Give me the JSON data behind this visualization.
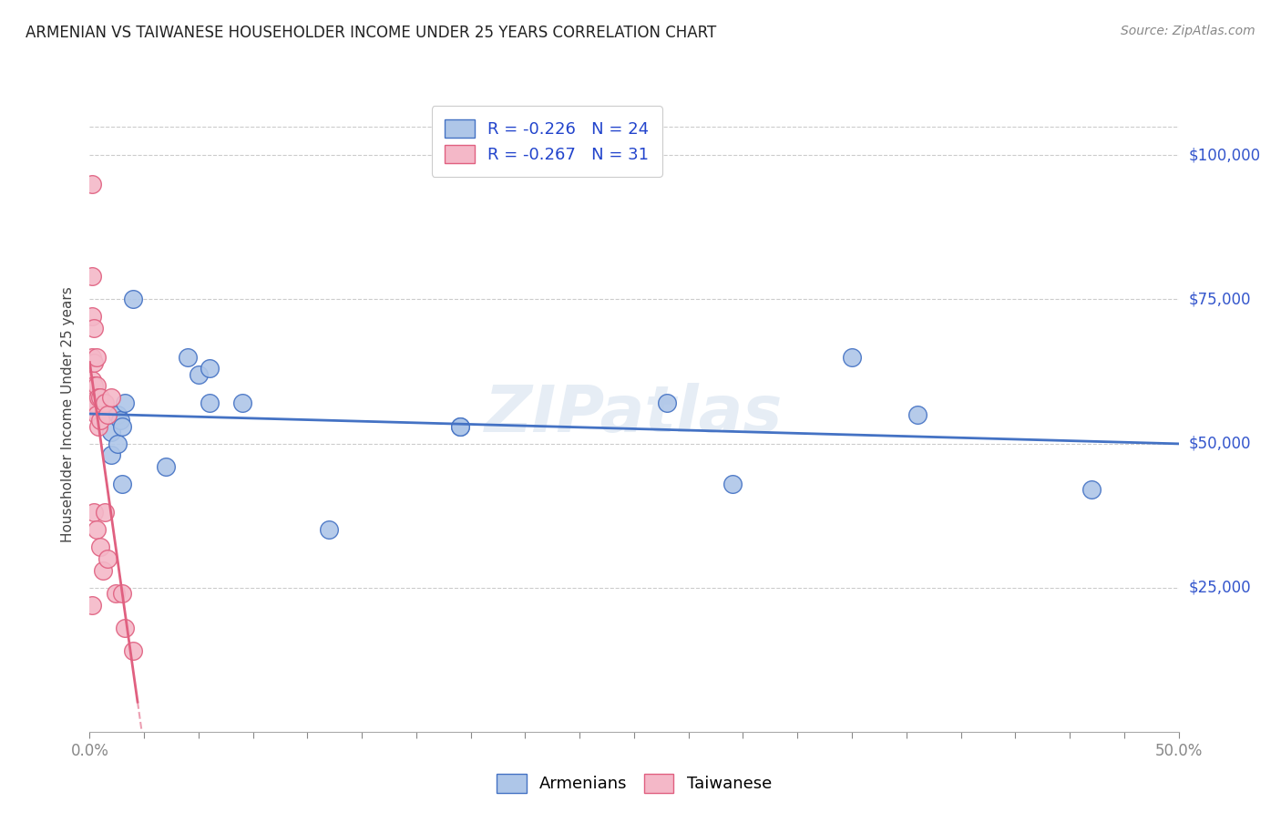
{
  "title": "ARMENIAN VS TAIWANESE HOUSEHOLDER INCOME UNDER 25 YEARS CORRELATION CHART",
  "source": "Source: ZipAtlas.com",
  "ylabel": "Householder Income Under 25 years",
  "ytick_labels": [
    "$25,000",
    "$50,000",
    "$75,000",
    "$100,000"
  ],
  "ytick_values": [
    25000,
    50000,
    75000,
    100000
  ],
  "armenian_color": "#aec6e8",
  "armenian_line_color": "#4472c4",
  "taiwanese_color": "#f4b8c8",
  "taiwanese_line_color": "#e06080",
  "watermark": "ZIPatlas",
  "armenians_x": [
    0.005,
    0.01,
    0.01,
    0.013,
    0.013,
    0.014,
    0.015,
    0.015,
    0.016,
    0.02,
    0.035,
    0.045,
    0.05,
    0.055,
    0.055,
    0.07,
    0.11,
    0.17,
    0.17,
    0.265,
    0.295,
    0.35,
    0.38,
    0.46
  ],
  "armenians_y": [
    56000,
    52000,
    48000,
    55000,
    50000,
    54000,
    53000,
    43000,
    57000,
    75000,
    46000,
    65000,
    62000,
    63000,
    57000,
    57000,
    35000,
    53000,
    53000,
    57000,
    43000,
    65000,
    55000,
    42000
  ],
  "taiwanese_x": [
    0.001,
    0.001,
    0.001,
    0.001,
    0.001,
    0.001,
    0.001,
    0.002,
    0.002,
    0.002,
    0.002,
    0.002,
    0.003,
    0.003,
    0.003,
    0.003,
    0.004,
    0.004,
    0.005,
    0.005,
    0.005,
    0.006,
    0.007,
    0.007,
    0.008,
    0.008,
    0.01,
    0.012,
    0.015,
    0.016,
    0.02
  ],
  "taiwanese_y": [
    95000,
    79000,
    72000,
    65000,
    61000,
    56000,
    22000,
    70000,
    64000,
    60000,
    57000,
    38000,
    65000,
    60000,
    55000,
    35000,
    58000,
    53000,
    58000,
    54000,
    32000,
    28000,
    57000,
    38000,
    55000,
    30000,
    58000,
    24000,
    24000,
    18000,
    14000
  ],
  "ylim": [
    0,
    110000
  ],
  "xlim": [
    0.0,
    0.5
  ],
  "arm_R": "-0.226",
  "arm_N": "24",
  "tai_R": "-0.267",
  "tai_N": "31"
}
